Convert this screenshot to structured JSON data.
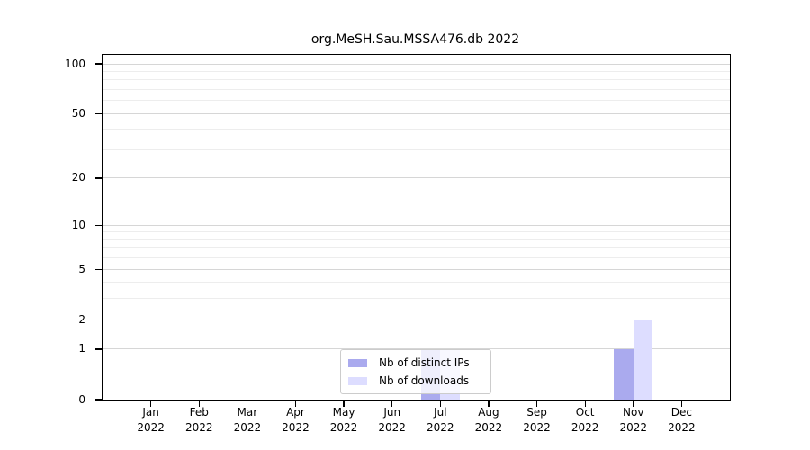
{
  "chart_data": {
    "type": "bar",
    "title": "org.MeSH.Sau.MSSA476.db 2022",
    "xlabel": "",
    "ylabel": "",
    "year": "2022",
    "categories": [
      "Jan",
      "Feb",
      "Mar",
      "Apr",
      "May",
      "Jun",
      "Jul",
      "Aug",
      "Sep",
      "Oct",
      "Nov",
      "Dec"
    ],
    "series": [
      {
        "id": "distinct-ips",
        "name": "Nb of distinct IPs",
        "color": "#aaaaee",
        "values": [
          0,
          0,
          0,
          0,
          0,
          0,
          1,
          0,
          0,
          0,
          1,
          0
        ]
      },
      {
        "id": "downloads",
        "name": "Nb of downloads",
        "color": "#ddddff",
        "values": [
          0,
          0,
          0,
          0,
          0,
          0,
          1,
          0,
          0,
          0,
          2,
          0
        ]
      }
    ],
    "yscale": "log1p",
    "ylim": [
      0,
      115
    ],
    "y_ticks": [
      100,
      50,
      20,
      10,
      5,
      2,
      1,
      0
    ],
    "y_gridlines_minor": [
      3,
      4,
      6,
      7,
      8,
      9,
      30,
      40,
      60,
      70,
      80,
      90
    ],
    "grid": true,
    "legend_position": "lower center",
    "colors": {
      "axis": "#000000",
      "grid_major": "#d6d6d6",
      "grid_minor": "#ededed",
      "legend_border": "#cccccc",
      "background": "#ffffff"
    }
  }
}
